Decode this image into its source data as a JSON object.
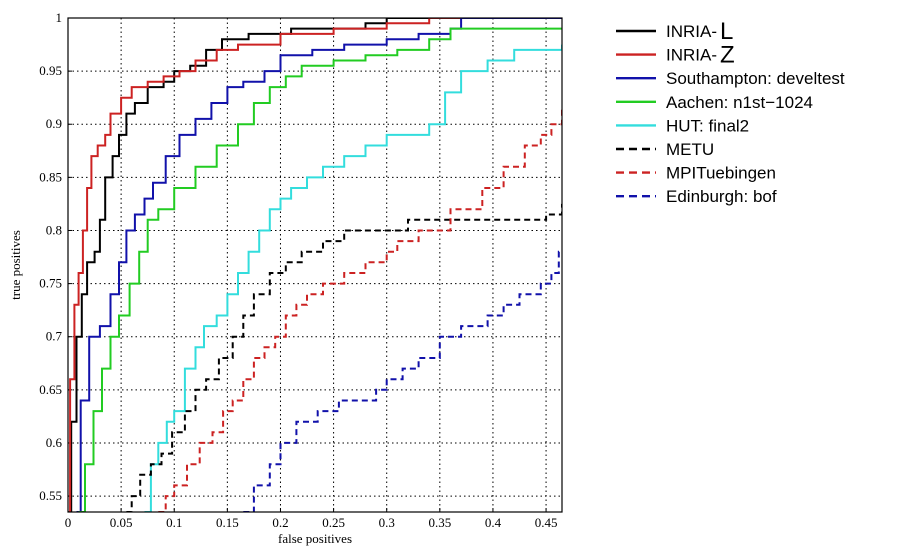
{
  "chart_data": {
    "type": "line",
    "title": "",
    "xlabel": "false positives",
    "ylabel": "true positives",
    "xlim": [
      0,
      0.465
    ],
    "ylim": [
      0.535,
      1.0
    ],
    "xticks": [
      "0",
      "0.05",
      "0.1",
      "0.15",
      "0.2",
      "0.25",
      "0.3",
      "0.35",
      "0.4",
      "0.45"
    ],
    "yticks": [
      "0.55",
      "0.6",
      "0.65",
      "0.7",
      "0.75",
      "0.8",
      "0.85",
      "0.9",
      "0.95",
      "1"
    ],
    "grid": true,
    "legend_position": "outside-right",
    "series": [
      {
        "name": "INRIA-",
        "name_suffix": "L",
        "color": "#000000",
        "dash": "solid",
        "points": [
          [
            0,
            0.535
          ],
          [
            0.003,
            0.62
          ],
          [
            0.008,
            0.7
          ],
          [
            0.013,
            0.74
          ],
          [
            0.018,
            0.77
          ],
          [
            0.025,
            0.78
          ],
          [
            0.03,
            0.81
          ],
          [
            0.035,
            0.85
          ],
          [
            0.042,
            0.87
          ],
          [
            0.048,
            0.89
          ],
          [
            0.055,
            0.91
          ],
          [
            0.063,
            0.92
          ],
          [
            0.075,
            0.935
          ],
          [
            0.09,
            0.94
          ],
          [
            0.1,
            0.95
          ],
          [
            0.115,
            0.955
          ],
          [
            0.13,
            0.97
          ],
          [
            0.145,
            0.98
          ],
          [
            0.17,
            0.985
          ],
          [
            0.21,
            0.99
          ],
          [
            0.28,
            0.995
          ],
          [
            0.3,
            1.0
          ],
          [
            0.465,
            1.0
          ]
        ]
      },
      {
        "name": "INRIA-",
        "name_suffix": "Z",
        "color": "#cc2222",
        "dash": "solid",
        "points": [
          [
            0,
            0.535
          ],
          [
            0.002,
            0.66
          ],
          [
            0.006,
            0.73
          ],
          [
            0.01,
            0.76
          ],
          [
            0.014,
            0.8
          ],
          [
            0.018,
            0.84
          ],
          [
            0.022,
            0.87
          ],
          [
            0.028,
            0.88
          ],
          [
            0.035,
            0.89
          ],
          [
            0.04,
            0.91
          ],
          [
            0.05,
            0.925
          ],
          [
            0.06,
            0.935
          ],
          [
            0.075,
            0.94
          ],
          [
            0.09,
            0.945
          ],
          [
            0.105,
            0.95
          ],
          [
            0.12,
            0.96
          ],
          [
            0.14,
            0.97
          ],
          [
            0.16,
            0.975
          ],
          [
            0.2,
            0.985
          ],
          [
            0.25,
            0.99
          ],
          [
            0.3,
            0.995
          ],
          [
            0.34,
            1.0
          ],
          [
            0.465,
            1.0
          ]
        ]
      },
      {
        "name": "Southampton: develtest",
        "color": "#1111aa",
        "dash": "solid",
        "points": [
          [
            0.008,
            0.535
          ],
          [
            0.012,
            0.64
          ],
          [
            0.02,
            0.7
          ],
          [
            0.03,
            0.71
          ],
          [
            0.04,
            0.74
          ],
          [
            0.048,
            0.77
          ],
          [
            0.055,
            0.8
          ],
          [
            0.063,
            0.815
          ],
          [
            0.072,
            0.83
          ],
          [
            0.08,
            0.845
          ],
          [
            0.092,
            0.87
          ],
          [
            0.105,
            0.89
          ],
          [
            0.12,
            0.905
          ],
          [
            0.135,
            0.92
          ],
          [
            0.15,
            0.935
          ],
          [
            0.165,
            0.94
          ],
          [
            0.185,
            0.95
          ],
          [
            0.2,
            0.965
          ],
          [
            0.23,
            0.97
          ],
          [
            0.26,
            0.975
          ],
          [
            0.3,
            0.98
          ],
          [
            0.33,
            0.985
          ],
          [
            0.36,
            0.99
          ],
          [
            0.37,
            1.0
          ],
          [
            0.465,
            1.0
          ]
        ]
      },
      {
        "name": "Aachen: n1st−1024",
        "color": "#22cc22",
        "dash": "solid",
        "points": [
          [
            0.01,
            0.535
          ],
          [
            0.016,
            0.58
          ],
          [
            0.024,
            0.63
          ],
          [
            0.032,
            0.67
          ],
          [
            0.04,
            0.7
          ],
          [
            0.048,
            0.72
          ],
          [
            0.058,
            0.75
          ],
          [
            0.067,
            0.78
          ],
          [
            0.075,
            0.81
          ],
          [
            0.085,
            0.82
          ],
          [
            0.1,
            0.84
          ],
          [
            0.12,
            0.86
          ],
          [
            0.14,
            0.88
          ],
          [
            0.16,
            0.9
          ],
          [
            0.175,
            0.92
          ],
          [
            0.19,
            0.935
          ],
          [
            0.205,
            0.945
          ],
          [
            0.22,
            0.955
          ],
          [
            0.25,
            0.96
          ],
          [
            0.28,
            0.965
          ],
          [
            0.31,
            0.97
          ],
          [
            0.34,
            0.98
          ],
          [
            0.36,
            0.99
          ],
          [
            0.465,
            0.99
          ]
        ]
      },
      {
        "name": "HUT: final2",
        "color": "#33dddd",
        "dash": "solid",
        "points": [
          [
            0.072,
            0.535
          ],
          [
            0.078,
            0.58
          ],
          [
            0.085,
            0.6
          ],
          [
            0.093,
            0.62
          ],
          [
            0.1,
            0.63
          ],
          [
            0.11,
            0.67
          ],
          [
            0.12,
            0.69
          ],
          [
            0.128,
            0.71
          ],
          [
            0.14,
            0.72
          ],
          [
            0.15,
            0.74
          ],
          [
            0.16,
            0.76
          ],
          [
            0.17,
            0.78
          ],
          [
            0.18,
            0.8
          ],
          [
            0.19,
            0.82
          ],
          [
            0.2,
            0.83
          ],
          [
            0.21,
            0.84
          ],
          [
            0.225,
            0.85
          ],
          [
            0.24,
            0.86
          ],
          [
            0.26,
            0.87
          ],
          [
            0.28,
            0.88
          ],
          [
            0.3,
            0.89
          ],
          [
            0.32,
            0.89
          ],
          [
            0.34,
            0.9
          ],
          [
            0.355,
            0.93
          ],
          [
            0.37,
            0.95
          ],
          [
            0.395,
            0.96
          ],
          [
            0.42,
            0.97
          ],
          [
            0.465,
            0.975
          ]
        ]
      },
      {
        "name": "METU",
        "color": "#000000",
        "dash": "dashed",
        "points": [
          [
            0.055,
            0.535
          ],
          [
            0.06,
            0.55
          ],
          [
            0.068,
            0.57
          ],
          [
            0.078,
            0.58
          ],
          [
            0.088,
            0.59
          ],
          [
            0.098,
            0.61
          ],
          [
            0.11,
            0.63
          ],
          [
            0.12,
            0.65
          ],
          [
            0.13,
            0.66
          ],
          [
            0.142,
            0.68
          ],
          [
            0.155,
            0.7
          ],
          [
            0.165,
            0.72
          ],
          [
            0.175,
            0.74
          ],
          [
            0.19,
            0.76
          ],
          [
            0.205,
            0.77
          ],
          [
            0.22,
            0.78
          ],
          [
            0.24,
            0.79
          ],
          [
            0.26,
            0.8
          ],
          [
            0.3,
            0.8
          ],
          [
            0.32,
            0.81
          ],
          [
            0.37,
            0.81
          ],
          [
            0.4,
            0.81
          ],
          [
            0.43,
            0.81
          ],
          [
            0.45,
            0.815
          ],
          [
            0.465,
            0.825
          ]
        ]
      },
      {
        "name": "MPITuebingen",
        "color": "#cc2222",
        "dash": "dashed",
        "points": [
          [
            0.085,
            0.535
          ],
          [
            0.092,
            0.55
          ],
          [
            0.1,
            0.56
          ],
          [
            0.112,
            0.58
          ],
          [
            0.124,
            0.6
          ],
          [
            0.136,
            0.61
          ],
          [
            0.146,
            0.63
          ],
          [
            0.155,
            0.64
          ],
          [
            0.165,
            0.66
          ],
          [
            0.175,
            0.68
          ],
          [
            0.185,
            0.69
          ],
          [
            0.195,
            0.7
          ],
          [
            0.205,
            0.72
          ],
          [
            0.215,
            0.73
          ],
          [
            0.225,
            0.74
          ],
          [
            0.24,
            0.75
          ],
          [
            0.26,
            0.76
          ],
          [
            0.28,
            0.77
          ],
          [
            0.3,
            0.78
          ],
          [
            0.31,
            0.79
          ],
          [
            0.33,
            0.8
          ],
          [
            0.36,
            0.82
          ],
          [
            0.39,
            0.84
          ],
          [
            0.41,
            0.86
          ],
          [
            0.43,
            0.88
          ],
          [
            0.445,
            0.89
          ],
          [
            0.455,
            0.9
          ],
          [
            0.465,
            0.915
          ]
        ]
      },
      {
        "name": "Edinburgh: bof",
        "color": "#1111aa",
        "dash": "dashed",
        "points": [
          [
            0.165,
            0.535
          ],
          [
            0.175,
            0.56
          ],
          [
            0.19,
            0.58
          ],
          [
            0.2,
            0.6
          ],
          [
            0.215,
            0.62
          ],
          [
            0.235,
            0.63
          ],
          [
            0.255,
            0.64
          ],
          [
            0.28,
            0.64
          ],
          [
            0.29,
            0.65
          ],
          [
            0.3,
            0.66
          ],
          [
            0.315,
            0.67
          ],
          [
            0.33,
            0.68
          ],
          [
            0.35,
            0.7
          ],
          [
            0.37,
            0.71
          ],
          [
            0.395,
            0.72
          ],
          [
            0.41,
            0.73
          ],
          [
            0.425,
            0.74
          ],
          [
            0.445,
            0.75
          ],
          [
            0.455,
            0.76
          ],
          [
            0.462,
            0.78
          ],
          [
            0.465,
            0.78
          ]
        ]
      }
    ]
  }
}
